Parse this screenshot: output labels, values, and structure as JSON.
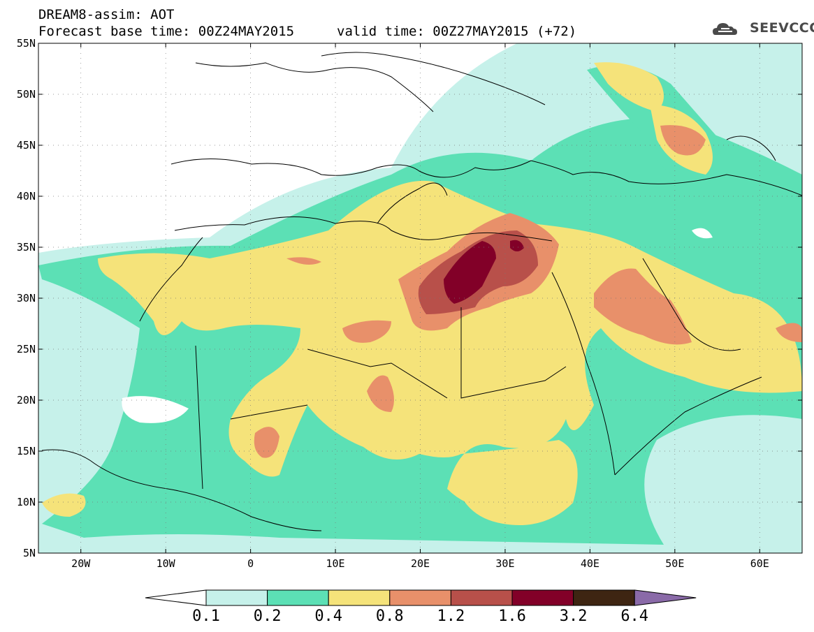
{
  "header": {
    "title": "DREAM8-assim: AOT",
    "base_time": "Forecast base time: 00Z24MAY2015",
    "valid_time": "valid time: 00Z27MAY2015 (+72)"
  },
  "logo": {
    "text": "SEEVCCC",
    "icon": "cloud-icon"
  },
  "map": {
    "lon_labels": [
      "20W",
      "10W",
      "0",
      "10E",
      "20E",
      "30E",
      "40E",
      "50E",
      "60E"
    ],
    "lat_labels": [
      "55N",
      "50N",
      "45N",
      "40N",
      "35N",
      "30N",
      "25N",
      "20N",
      "15N",
      "10N",
      "5N"
    ],
    "lon_range": [
      -25,
      65
    ],
    "lat_range": [
      5,
      55
    ]
  },
  "legend": {
    "labels": [
      "0.1",
      "0.2",
      "0.4",
      "0.8",
      "1.2",
      "1.6",
      "3.2",
      "6.4"
    ],
    "colors": [
      "#ffffff",
      "#c6f1ea",
      "#5ce0b5",
      "#f5e37a",
      "#e8906a",
      "#b8504a",
      "#820028",
      "#3e2512",
      "#8a6aa8"
    ]
  }
}
